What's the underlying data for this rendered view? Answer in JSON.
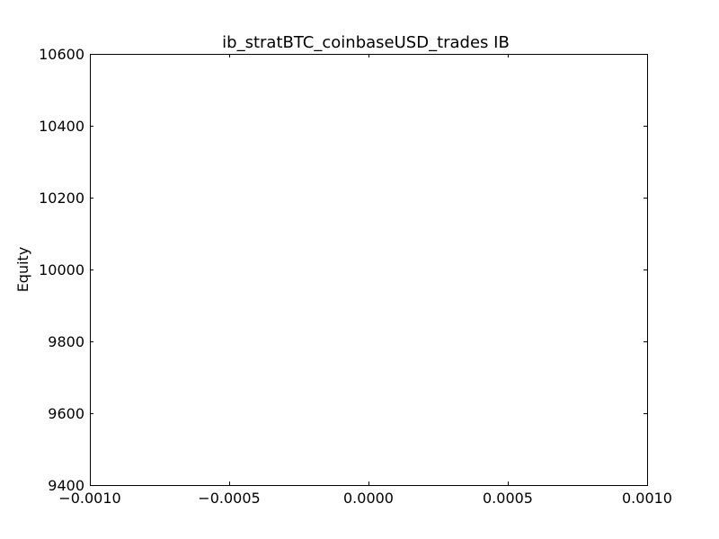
{
  "chart_data": {
    "type": "line",
    "title": "ib_stratBTC_coinbaseUSD_trades IB",
    "xlabel": "",
    "ylabel": "Equity",
    "xlim": [
      -0.001,
      0.001
    ],
    "ylim": [
      9400,
      10600
    ],
    "x_ticks": [
      -0.001,
      -0.0005,
      0.0,
      0.0005,
      0.001
    ],
    "x_tick_labels": [
      "−0.0010",
      "−0.0005",
      "0.0000",
      "0.0005",
      "0.0010"
    ],
    "y_ticks": [
      9400,
      9600,
      9800,
      10000,
      10200,
      10400,
      10600
    ],
    "y_tick_labels": [
      "9400",
      "9600",
      "9800",
      "10000",
      "10200",
      "10400",
      "10600"
    ],
    "series": [],
    "grid": false,
    "colors": {
      "axes": "#000000",
      "background": "#ffffff"
    }
  }
}
